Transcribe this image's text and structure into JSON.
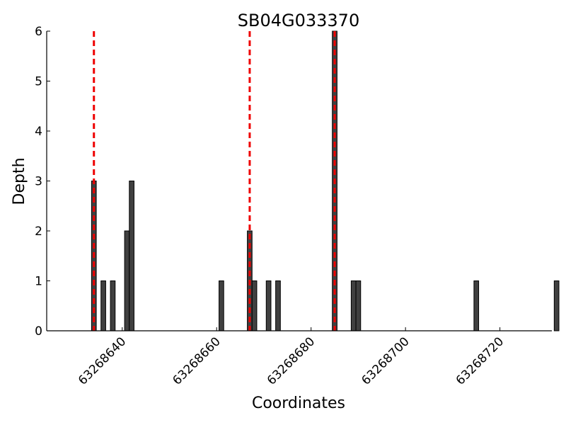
{
  "chart_data": {
    "type": "bar",
    "title": "SB04G033370",
    "xlabel": "Coordinates",
    "ylabel": "Depth",
    "xlim": [
      63268624,
      63268731
    ],
    "ylim": [
      0,
      6
    ],
    "x_ticks": [
      63268640,
      63268660,
      63268680,
      63268700,
      63268720
    ],
    "y_ticks": [
      0,
      1,
      2,
      3,
      4,
      5,
      6
    ],
    "grid": false,
    "bar_color": "#404040",
    "bar_width": 1,
    "bars": [
      {
        "x": 63268634,
        "depth": 3
      },
      {
        "x": 63268636,
        "depth": 1
      },
      {
        "x": 63268638,
        "depth": 1
      },
      {
        "x": 63268641,
        "depth": 2
      },
      {
        "x": 63268642,
        "depth": 3
      },
      {
        "x": 63268661,
        "depth": 1
      },
      {
        "x": 63268667,
        "depth": 2
      },
      {
        "x": 63268668,
        "depth": 1
      },
      {
        "x": 63268671,
        "depth": 1
      },
      {
        "x": 63268673,
        "depth": 1
      },
      {
        "x": 63268685,
        "depth": 6
      },
      {
        "x": 63268689,
        "depth": 1
      },
      {
        "x": 63268690,
        "depth": 1
      },
      {
        "x": 63268715,
        "depth": 1
      },
      {
        "x": 63268732,
        "depth": 1
      }
    ],
    "markers": {
      "color": "#ee0000",
      "style": "dashed",
      "x": [
        63268634,
        63268667,
        63268685
      ]
    }
  }
}
